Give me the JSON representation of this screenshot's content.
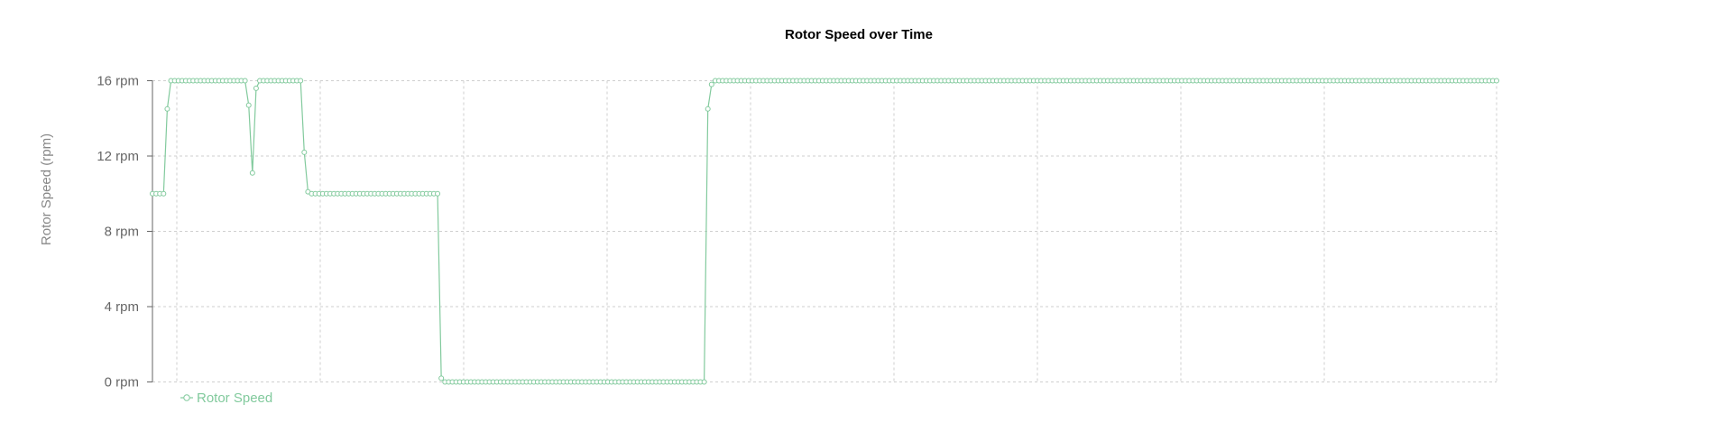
{
  "chart_data": {
    "type": "line",
    "title": "Rotor Speed over Time",
    "ylabel": "Rotor Speed (rpm)",
    "xlabel": "",
    "ylim": [
      0,
      16
    ],
    "yticks": [
      0,
      4,
      8,
      12,
      16
    ],
    "ytick_labels": [
      "0 rpm",
      "4 rpm",
      "8 rpm",
      "12 rpm",
      "16 rpm"
    ],
    "grid": true,
    "legend_position": "bottom-left",
    "color": "#82ca9d",
    "series": [
      {
        "name": "Rotor Speed",
        "values": [
          10,
          10,
          10,
          10,
          14.5,
          16,
          16,
          16,
          16,
          16,
          16,
          16,
          16,
          16,
          16,
          16,
          16,
          16,
          16,
          16,
          16,
          16,
          16,
          16,
          16,
          16,
          14.7,
          11.1,
          15.6,
          16,
          16,
          16,
          16,
          16,
          16,
          16,
          16,
          16,
          16,
          16,
          16,
          12.2,
          10.1,
          10,
          10,
          10,
          10,
          10,
          10,
          10,
          10,
          10,
          10,
          10,
          10,
          10,
          10,
          10,
          10,
          10,
          10,
          10,
          10,
          10,
          10,
          10,
          10,
          10,
          10,
          10,
          10,
          10,
          10,
          10,
          10,
          10,
          10,
          10,
          0.2,
          0,
          0,
          0,
          0,
          0,
          0,
          0,
          0,
          0,
          0,
          0,
          0,
          0,
          0,
          0,
          0,
          0,
          0,
          0,
          0,
          0,
          0,
          0,
          0,
          0,
          0,
          0,
          0,
          0,
          0,
          0,
          0,
          0,
          0,
          0,
          0,
          0,
          0,
          0,
          0,
          0,
          0,
          0,
          0,
          0,
          0,
          0,
          0,
          0,
          0,
          0,
          0,
          0,
          0,
          0,
          0,
          0,
          0,
          0,
          0,
          0,
          0,
          0,
          0,
          0,
          0,
          0,
          0,
          0,
          0,
          0,
          14.5,
          15.8,
          16,
          16,
          16,
          16,
          16,
          16,
          16,
          16,
          16,
          16,
          16,
          16,
          16,
          16,
          16,
          16,
          16,
          16,
          16,
          16,
          16,
          16,
          16,
          16,
          16,
          16,
          16,
          16,
          16,
          16,
          16,
          16,
          16,
          16,
          16,
          16,
          16,
          16,
          16,
          16,
          16,
          16,
          16,
          16,
          16,
          16,
          16,
          16,
          16,
          16,
          16,
          16,
          16,
          16,
          16,
          16,
          16,
          16,
          16,
          16,
          16,
          16,
          16,
          16,
          16,
          16,
          16,
          16,
          16,
          16,
          16,
          16,
          16,
          16,
          16,
          16,
          16,
          16,
          16,
          16,
          16,
          16,
          16,
          16,
          16,
          16,
          16,
          16,
          16,
          16,
          16,
          16,
          16,
          16,
          16,
          16,
          16,
          16,
          16,
          16,
          16,
          16,
          16,
          16,
          16,
          16,
          16,
          16,
          16,
          16,
          16,
          16,
          16,
          16,
          16,
          16,
          16,
          16,
          16,
          16,
          16,
          16,
          16,
          16,
          16,
          16,
          16,
          16,
          16,
          16,
          16,
          16,
          16,
          16,
          16,
          16,
          16,
          16,
          16,
          16,
          16,
          16,
          16,
          16,
          16,
          16,
          16,
          16,
          16,
          16,
          16,
          16,
          16,
          16,
          16,
          16,
          16,
          16,
          16,
          16,
          16,
          16,
          16,
          16,
          16,
          16,
          16,
          16,
          16,
          16,
          16,
          16,
          16,
          16,
          16,
          16,
          16,
          16,
          16,
          16,
          16,
          16,
          16,
          16,
          16,
          16,
          16,
          16,
          16,
          16,
          16,
          16,
          16,
          16,
          16,
          16,
          16,
          16,
          16,
          16,
          16,
          16,
          16,
          16,
          16,
          16,
          16,
          16,
          16,
          16,
          16,
          16
        ]
      }
    ]
  }
}
